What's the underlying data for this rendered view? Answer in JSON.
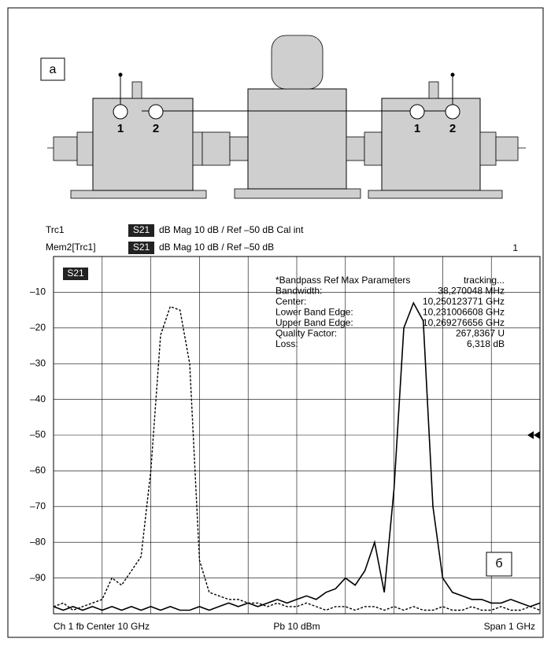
{
  "diagram": {
    "label": "а",
    "ports": [
      "1",
      "2",
      "1",
      "2"
    ]
  },
  "chart_data": {
    "type": "line",
    "trace_tag": "S21",
    "header": [
      "dB Mag 10 dB / Ref –50 dB  Cal int",
      "dB Mag 10 dB / Ref –50 dB"
    ],
    "channel_number": "1",
    "panel_label": "б",
    "ref_level": -50,
    "marker_table": [
      [
        "*Bandpass Ref Max Parameters",
        "tracking..."
      ],
      [
        "Bandwidth:",
        "38,270048 MHz"
      ],
      [
        "Center:",
        "10,250123771 GHz"
      ],
      [
        "Lower Band Edge:",
        "10,231006608 GHz"
      ],
      [
        "Upper Band Edge:",
        "10,269276656 GHz"
      ],
      [
        "Quality Factor:",
        "267,8367 U"
      ],
      [
        "Loss:",
        "6,318 dB"
      ]
    ],
    "footer": [
      "Ch 1 fb Center 10 GHz",
      "Pb 10 dBm",
      "Span 1 GHz"
    ],
    "xlim": [
      9.5,
      10.5
    ],
    "ylim": [
      -100,
      0
    ],
    "yticks": [
      {
        "value": -10,
        "label": "–10"
      },
      {
        "value": -20,
        "label": "–20"
      },
      {
        "value": -30,
        "label": "–30"
      },
      {
        "value": -40,
        "label": "–40"
      },
      {
        "value": -50,
        "label": "–50"
      },
      {
        "value": -60,
        "label": "–60"
      },
      {
        "value": -70,
        "label": "–70"
      },
      {
        "value": -80,
        "label": "–80"
      },
      {
        "value": -90,
        "label": "–90"
      }
    ],
    "grid": true,
    "x": [
      9.5,
      9.52,
      9.54,
      9.56,
      9.58,
      9.6,
      9.62,
      9.64,
      9.66,
      9.68,
      9.7,
      9.72,
      9.74,
      9.76,
      9.78,
      9.8,
      9.82,
      9.84,
      9.86,
      9.88,
      9.9,
      9.92,
      9.94,
      9.96,
      9.98,
      10.0,
      10.02,
      10.04,
      10.06,
      10.08,
      10.1,
      10.12,
      10.14,
      10.16,
      10.18,
      10.2,
      10.22,
      10.24,
      10.26,
      10.28,
      10.3,
      10.32,
      10.34,
      10.36,
      10.38,
      10.4,
      10.42,
      10.44,
      10.46,
      10.48,
      10.5
    ],
    "series": [
      {
        "name": "Trc1",
        "color": "#000000",
        "style": "solid",
        "values": [
          -98,
          -99,
          -98,
          -99,
          -98,
          -99,
          -98,
          -99,
          -98,
          -99,
          -98,
          -99,
          -98,
          -99,
          -99,
          -98,
          -99,
          -98,
          -97,
          -98,
          -97,
          -98,
          -97,
          -96,
          -97,
          -96,
          -95,
          -96,
          -94,
          -93,
          -90,
          -92,
          -88,
          -80,
          -94,
          -65,
          -20,
          -13,
          -18,
          -70,
          -90,
          -94,
          -95,
          -96,
          -96,
          -97,
          -97,
          -96,
          -97,
          -98,
          -97
        ]
      },
      {
        "name": "Mem2[Trc1]",
        "color": "#000000",
        "style": "dashed",
        "values": [
          -98,
          -97,
          -99,
          -98,
          -97,
          -96,
          -90,
          -92,
          -88,
          -84,
          -60,
          -22,
          -14,
          -15,
          -30,
          -85,
          -94,
          -95,
          -96,
          -96,
          -97,
          -97,
          -98,
          -97,
          -98,
          -98,
          -97,
          -98,
          -99,
          -98,
          -98,
          -99,
          -98,
          -98,
          -99,
          -98,
          -99,
          -98,
          -99,
          -99,
          -98,
          -99,
          -99,
          -98,
          -99,
          -99,
          -98,
          -99,
          -99,
          -98,
          -99
        ]
      }
    ]
  }
}
